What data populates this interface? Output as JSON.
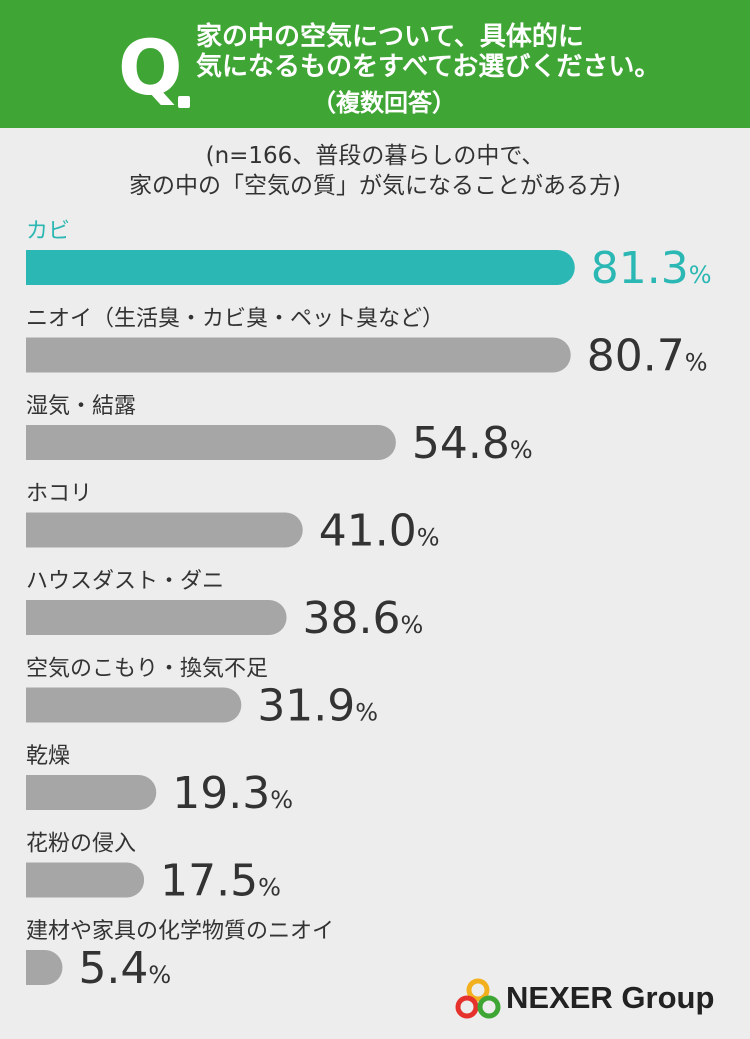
{
  "header": {
    "q_letter": "Q",
    "question_line1": "家の中の空気について、具体的に",
    "question_line2": "気になるものをすべてお選びください。",
    "question_sub": "（複数回答）"
  },
  "note": {
    "line1": "(n=166、普段の暮らしの中で、",
    "line2": "家の中の「空気の質」が気になることがある方)"
  },
  "chart_data": {
    "type": "bar",
    "orientation": "horizontal",
    "title": "",
    "xlabel": "",
    "ylabel": "",
    "value_suffix": "%",
    "xlim": [
      0,
      100
    ],
    "grid": false,
    "categories": [
      "カビ",
      "ニオイ（生活臭・カビ臭・ペット臭など）",
      "湿気・結露",
      "ホコリ",
      "ハウスダスト・ダニ",
      "空気のこもり・換気不足",
      "乾燥",
      "花粉の侵入",
      "建材や家具の化学物質のニオイ"
    ],
    "values": [
      81.3,
      80.7,
      54.8,
      41.0,
      38.6,
      31.9,
      19.3,
      17.5,
      5.4
    ],
    "value_labels": [
      "81.3",
      "80.7",
      "54.8",
      "41.0",
      "38.6",
      "31.9",
      "19.3",
      "17.5",
      "5.4"
    ],
    "highlight_index": 0
  },
  "colors": {
    "header_bg": "#3fa535",
    "highlight": "#2bb7b3",
    "bar": "#a6a6a6",
    "label_text": "#333333",
    "background": "#ededed"
  },
  "logo": {
    "text": "NEXER Group",
    "icon": "nexer-rings-icon"
  }
}
